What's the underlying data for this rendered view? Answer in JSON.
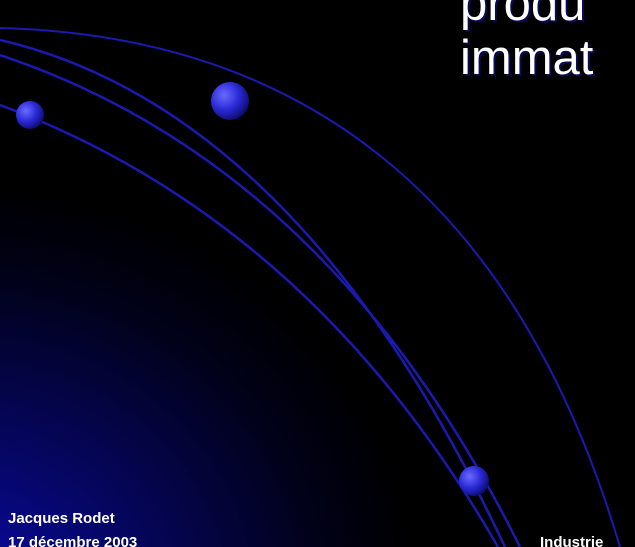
{
  "slide": {
    "title_line_1": "produ",
    "title_line_2": "immat",
    "author": "Jacques Rodet",
    "date": "17 décembre 2003",
    "footer_right": "Industrie"
  },
  "colors": {
    "background": "#000000",
    "gradient_glow": "#0c0cb4",
    "arc_stroke": "#1a1ab0",
    "orb": "#2a2ad6",
    "text": "#ffffff"
  }
}
